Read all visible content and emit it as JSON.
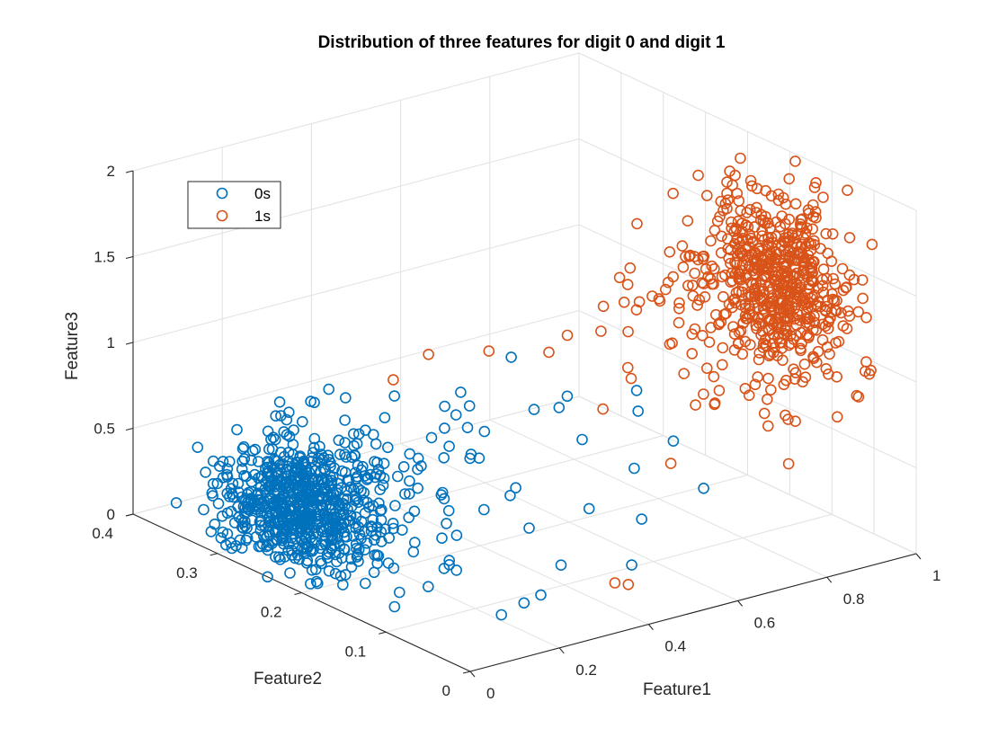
{
  "chart_data": {
    "type": "scatter",
    "title": "Distribution of three features for digit 0 and digit 1",
    "xlabel": "Feature1",
    "ylabel": "Feature2",
    "zlabel": "Feature3",
    "xlim": [
      0,
      1
    ],
    "ylim": [
      0,
      0.4
    ],
    "zlim": [
      0,
      2
    ],
    "x_ticks": [
      "0",
      "0.2",
      "0.4",
      "0.6",
      "0.8",
      "1"
    ],
    "y_ticks": [
      "0",
      "0.1",
      "0.2",
      "0.3",
      "0.4"
    ],
    "z_ticks": [
      "0",
      "0.5",
      "1",
      "1.5",
      "2"
    ],
    "grid": true,
    "legend_position": "top-left",
    "marker": "open-circle",
    "series": [
      {
        "name": "0s",
        "color": "#0072BD",
        "clusters": [
          {
            "n": 650,
            "center": [
              0.12,
              0.27,
              0.25
            ],
            "spread": [
              0.06,
              0.035,
              0.17
            ]
          },
          {
            "n": 110,
            "center": [
              0.24,
              0.21,
              0.45
            ],
            "spread": [
              0.09,
              0.06,
              0.25
            ]
          }
        ],
        "points": [
          [
            0.44,
            0.1,
            0.82
          ],
          [
            0.47,
            0.2,
            1.05
          ],
          [
            0.52,
            0.16,
            0.88
          ],
          [
            0.6,
            0.12,
            0.95
          ],
          [
            0.66,
            0.15,
            0.72
          ],
          [
            0.55,
            0.05,
            0.85
          ],
          [
            0.58,
            0.03,
            0.6
          ],
          [
            0.38,
            0.06,
            0.55
          ],
          [
            0.34,
            0.11,
            0.35
          ],
          [
            0.4,
            0.02,
            0.3
          ],
          [
            0.46,
            0.04,
            0.48
          ],
          [
            0.5,
            0.07,
            0.68
          ]
        ]
      },
      {
        "name": "1s",
        "color": "#D95319",
        "clusters": [
          {
            "n": 520,
            "center": [
              0.92,
              0.12,
              1.38
            ],
            "spread": [
              0.035,
              0.035,
              0.24
            ]
          },
          {
            "n": 130,
            "center": [
              0.8,
              0.1,
              1.25
            ],
            "spread": [
              0.09,
              0.06,
              0.22
            ]
          }
        ],
        "points": [
          [
            0.3,
            0.25,
            0.92
          ],
          [
            0.36,
            0.24,
            1.05
          ],
          [
            0.46,
            0.15,
            1.2
          ],
          [
            0.52,
            0.12,
            1.35
          ],
          [
            0.55,
            0.1,
            1.1
          ],
          [
            0.62,
            0.09,
            0.58
          ],
          [
            0.7,
            0.08,
            0.9
          ],
          [
            0.72,
            0.05,
            1.0
          ],
          [
            0.4,
            0.04,
            0.15
          ],
          [
            0.43,
            0.04,
            0.12
          ],
          [
            0.6,
            0.16,
            0.75
          ],
          [
            0.65,
            0.12,
            1.45
          ],
          [
            0.42,
            0.2,
            1.12
          ]
        ]
      }
    ]
  }
}
